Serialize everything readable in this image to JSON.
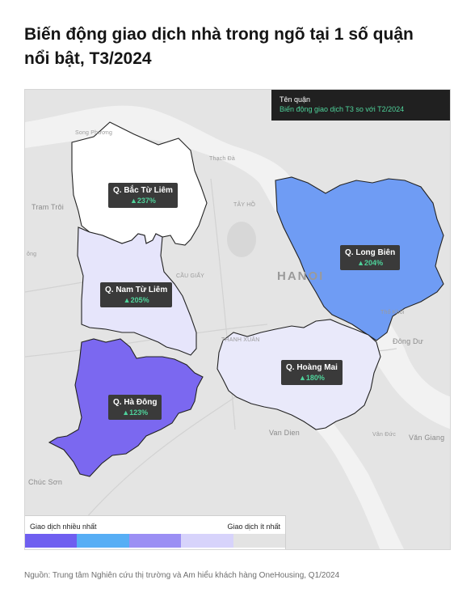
{
  "title": {
    "line1": "Biến động giao dịch nhà trong ngõ tại 1 số quận",
    "line2": "nổi bật, T3/2024"
  },
  "info_box": {
    "line1": "Tên quận",
    "line2": "Biến động giao dịch T3 so với T2/2024"
  },
  "districts": [
    {
      "name": "Q. Bắc Từ Liêm",
      "change": "▲237%",
      "fill": "#ffffff"
    },
    {
      "name": "Q. Nam Từ Liêm",
      "change": "▲205%",
      "fill": "#e6e5fb"
    },
    {
      "name": "Q. Hà Đông",
      "change": "▲123%",
      "fill": "#7b68f0"
    },
    {
      "name": "Q. Long Biên",
      "change": "▲204%",
      "fill": "#6f9cf4"
    },
    {
      "name": "Q. Hoàng Mai",
      "change": "▲180%",
      "fill": "#e9e9fa"
    }
  ],
  "places": {
    "hanoi": "HANOI",
    "tram_troi": "Tram Trôi",
    "song_phuong": "Song Phương",
    "tay_ho": "TÂY HỒ",
    "cau_giay": "CẦU GIẤY",
    "thanh_xuan": "THANH XUÂN",
    "thach_da": "Thạch Đà",
    "dong_du": "Đông Dư",
    "van_dien": "Van Dien",
    "van_duc": "Vân Đức",
    "van_giang": "Văn Giang",
    "chuc_son": "Chúc Sơn",
    "tho_khoi": "Thổ Khối",
    "ong_left": "ông"
  },
  "legend": {
    "left_label": "Giao dịch nhiều nhất",
    "right_label": "Giao dịch ít nhất",
    "colors": [
      "#6f5ff0",
      "#57aef5",
      "#9b8ff4",
      "#d7d3fb",
      "#e3e3e3"
    ]
  },
  "source": "Nguồn: Trung tâm Nghiên cứu thị trường và Am hiểu khách hàng OneHousing, Q1/2024"
}
